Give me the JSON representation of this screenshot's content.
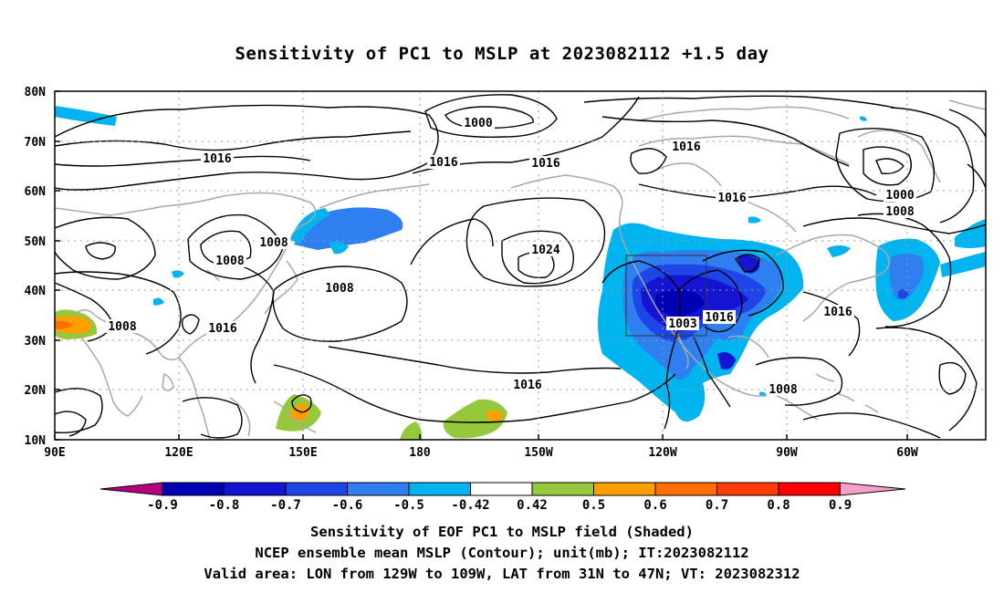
{
  "title": "Sensitivity of PC1 to MSLP at 2023082112 +1.5 day",
  "map": {
    "lat_labels": [
      "80N",
      "70N",
      "60N",
      "50N",
      "40N",
      "30N",
      "20N",
      "10N"
    ],
    "lon_labels": [
      "90E",
      "120E",
      "150E",
      "180",
      "150W",
      "120W",
      "90W",
      "60W"
    ],
    "isobar_labels": [
      {
        "text": "1016"
      },
      {
        "text": "1016"
      },
      {
        "text": "1016"
      },
      {
        "text": "1000"
      },
      {
        "text": "1016"
      },
      {
        "text": "1016"
      },
      {
        "text": "1000"
      },
      {
        "text": "1008"
      },
      {
        "text": "1008"
      },
      {
        "text": "1008"
      },
      {
        "text": "1016"
      },
      {
        "text": "1024"
      },
      {
        "text": "1008"
      },
      {
        "text": "1008"
      },
      {
        "text": "1003"
      },
      {
        "text": "1016"
      },
      {
        "text": "1016"
      },
      {
        "text": "1016"
      },
      {
        "text": "1008"
      }
    ]
  },
  "colorbar": {
    "labels": [
      "-0.9",
      "-0.8",
      "-0.7",
      "-0.6",
      "-0.5",
      "-0.42",
      "0.42",
      "0.5",
      "0.6",
      "0.7",
      "0.8",
      "0.9"
    ],
    "colors": [
      "#b4007f",
      "#0000b4",
      "#1414d2",
      "#1e46e6",
      "#2f7ff0",
      "#00b4f0",
      "#ffffff",
      "#96c83c",
      "#ffa000",
      "#ff6e00",
      "#ff3c00",
      "#ff0000",
      "#f5a0c8"
    ]
  },
  "caption": {
    "line1": "Sensitivity of EOF PC1 to MSLP field (Shaded)",
    "line2": "NCEP ensemble mean MSLP (Contour); unit(mb); IT:2023082112",
    "line3": "Valid area: LON from 129W to 109W, LAT from 31N to 47N; VT: 2023082312"
  }
}
